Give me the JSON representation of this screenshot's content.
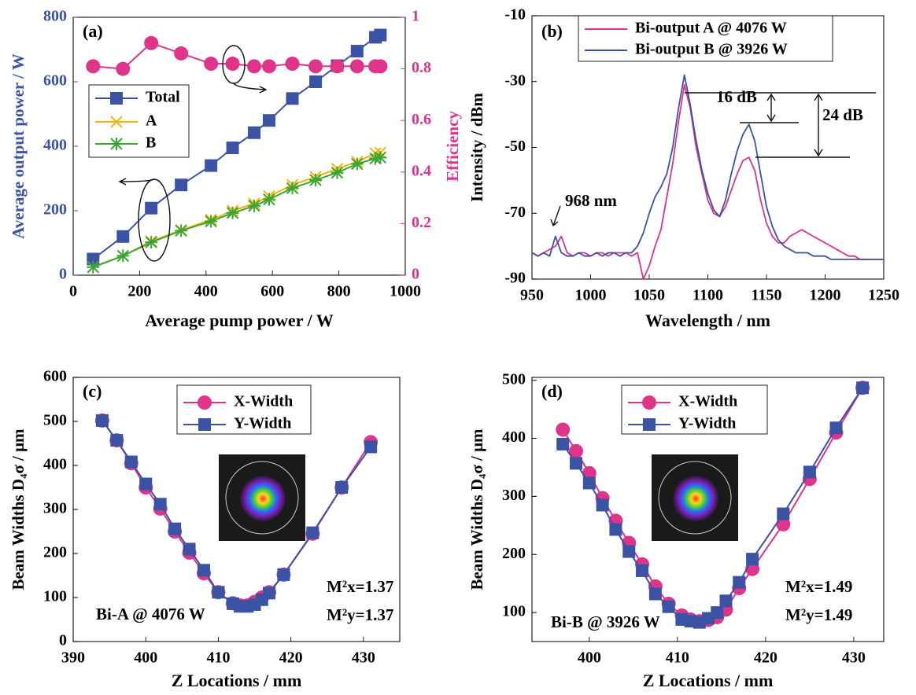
{
  "chart_data": [
    {
      "type": "line",
      "panel_label": "(a)",
      "xlabel": "Average pump power / W",
      "ylabel": "Average output power / W",
      "y2label": "Efficiency",
      "xlim": [
        0,
        1000
      ],
      "xticks": [
        0,
        200,
        400,
        600,
        800,
        1000
      ],
      "ylim": [
        0,
        800
      ],
      "yticks": [
        0,
        200,
        400,
        600,
        800
      ],
      "y2lim": [
        0,
        1
      ],
      "y2ticks": [
        0,
        0.2,
        0.4,
        0.6,
        0.8,
        1
      ],
      "legend": "center left",
      "x": [
        60,
        150,
        235,
        325,
        415,
        480,
        545,
        590,
        660,
        730,
        795,
        855,
        910,
        925
      ],
      "series": [
        {
          "name": "Total",
          "color": "#3a53a4",
          "marker": "square",
          "values": [
            50,
            120,
            208,
            280,
            340,
            395,
            442,
            480,
            548,
            600,
            650,
            695,
            738,
            745
          ]
        },
        {
          "name": "A",
          "color": "#f2b705",
          "marker": "x",
          "values": [
            25,
            60,
            105,
            140,
            172,
            200,
            222,
            245,
            280,
            305,
            330,
            352,
            378,
            380
          ]
        },
        {
          "name": "B",
          "color": "#3aa635",
          "marker": "asterisk",
          "values": [
            25,
            60,
            102,
            138,
            167,
            193,
            215,
            235,
            270,
            295,
            318,
            345,
            362,
            365
          ]
        },
        {
          "name": null,
          "color": "#e0338a",
          "marker": "circle",
          "axis": "y2",
          "values": [
            0.81,
            0.8,
            0.9,
            0.86,
            0.82,
            0.82,
            0.81,
            0.81,
            0.82,
            0.81,
            0.81,
            0.81,
            0.81,
            0.81
          ]
        }
      ],
      "annotations": []
    },
    {
      "type": "line",
      "panel_label": "(b)",
      "xlabel": "Wavelength / nm",
      "ylabel": "Intensity / dBm",
      "xlim": [
        950,
        1250
      ],
      "xticks": [
        950,
        1000,
        1050,
        1100,
        1150,
        1200,
        1250
      ],
      "ylim": [
        -90,
        -10
      ],
      "yticks": [
        -90,
        -70,
        -50,
        -30,
        -10
      ],
      "legend": "upper center",
      "x": [
        950,
        955,
        960,
        965,
        970,
        975,
        980,
        985,
        990,
        995,
        1000,
        1005,
        1010,
        1015,
        1020,
        1025,
        1030,
        1035,
        1040,
        1045,
        1050,
        1055,
        1060,
        1065,
        1070,
        1075,
        1080,
        1085,
        1090,
        1095,
        1100,
        1105,
        1110,
        1115,
        1120,
        1125,
        1130,
        1135,
        1140,
        1145,
        1150,
        1155,
        1160,
        1165,
        1170,
        1175,
        1180,
        1185,
        1190,
        1195,
        1200,
        1205,
        1210,
        1215,
        1220,
        1225,
        1230,
        1235,
        1240,
        1245,
        1250
      ],
      "series": [
        {
          "name": "Bi-output A @ 4076 W",
          "color": "#e0338a",
          "values": [
            -82,
            -83,
            -82,
            -81,
            -80,
            -77,
            -82,
            -83,
            -82,
            -82,
            -83,
            -82,
            -82,
            -83,
            -82,
            -82,
            -82,
            -83,
            -82,
            -90,
            -86,
            -80,
            -75,
            -65,
            -55,
            -42,
            -31,
            -38,
            -50,
            -58,
            -66,
            -70,
            -71,
            -68,
            -63,
            -58,
            -54,
            -53,
            -57,
            -66,
            -73,
            -77,
            -79,
            -79,
            -77,
            -76,
            -75,
            -76,
            -77,
            -78,
            -79,
            -80,
            -81,
            -82,
            -83,
            -83,
            -84,
            -84,
            -84,
            -84,
            -84
          ]
        },
        {
          "name": "Bi-output B @ 3926 W",
          "color": "#3a53a4",
          "values": [
            -82,
            -83,
            -82,
            -83,
            -77,
            -82,
            -83,
            -83,
            -82,
            -83,
            -83,
            -82,
            -83,
            -82,
            -82,
            -83,
            -82,
            -82,
            -80,
            -76,
            -70,
            -65,
            -62,
            -58,
            -50,
            -38,
            -28,
            -37,
            -48,
            -57,
            -64,
            -69,
            -71,
            -66,
            -58,
            -51,
            -46,
            -43,
            -48,
            -58,
            -68,
            -74,
            -78,
            -80,
            -81,
            -82,
            -82,
            -82,
            -83,
            -83,
            -83,
            -84,
            -84,
            -84,
            -84,
            -84,
            -84,
            -84,
            -84,
            -84,
            -84
          ]
        }
      ],
      "annotations": [
        "968 nm",
        "16 dB",
        "24 dB"
      ]
    },
    {
      "type": "line",
      "panel_label": "(c)",
      "xlabel": "Z Locations / mm",
      "ylabel": "Beam Widths D₄σ / μm",
      "xlim": [
        390,
        435
      ],
      "xticks": [
        390,
        400,
        410,
        420,
        430
      ],
      "ylim": [
        0,
        600
      ],
      "yticks": [
        0,
        100,
        200,
        300,
        400,
        500,
        600
      ],
      "legend": "upper center",
      "x": [
        394,
        396,
        398,
        400,
        402,
        404,
        406,
        408,
        410,
        412,
        413,
        414,
        415,
        416,
        417,
        419,
        423,
        427,
        431
      ],
      "series": [
        {
          "name": "X-Width",
          "color": "#e0338a",
          "marker": "circle",
          "values": [
            502,
            457,
            405,
            350,
            302,
            250,
            202,
            155,
            112,
            87,
            82,
            82,
            90,
            100,
            112,
            152,
            245,
            350,
            453
          ]
        },
        {
          "name": "Y-Width",
          "color": "#3a53a4",
          "marker": "square",
          "values": [
            502,
            457,
            408,
            358,
            312,
            256,
            210,
            162,
            112,
            86,
            80,
            80,
            84,
            95,
            110,
            152,
            247,
            350,
            442
          ]
        }
      ],
      "annotations": [
        "Bi-A @ 4076 W",
        "M²x=1.37",
        "M²y=1.37"
      ]
    },
    {
      "type": "line",
      "panel_label": "(d)",
      "xlabel": "Z Locations / mm",
      "ylabel": "Beam Widths D₄σ / μm",
      "xlim": [
        393.5,
        433.4
      ],
      "xticks": [
        400,
        410,
        420,
        430
      ],
      "ylim": [
        50,
        505
      ],
      "yticks": [
        100,
        200,
        300,
        400,
        500
      ],
      "legend": "upper center",
      "x": [
        397,
        398.5,
        400,
        401.5,
        403,
        404.5,
        406,
        407.5,
        409,
        410.5,
        411.5,
        412.5,
        413.5,
        414.5,
        415.5,
        417,
        418.5,
        422,
        425,
        428,
        431
      ],
      "series": [
        {
          "name": "X-Width",
          "color": "#e0338a",
          "marker": "circle",
          "values": [
            415,
            378,
            340,
            297,
            258,
            220,
            183,
            145,
            115,
            95,
            88,
            85,
            87,
            92,
            105,
            142,
            175,
            252,
            330,
            410,
            487
          ]
        },
        {
          "name": "Y-Width",
          "color": "#3a53a4",
          "marker": "square",
          "values": [
            390,
            357,
            323,
            285,
            243,
            205,
            172,
            132,
            110,
            88,
            85,
            83,
            90,
            100,
            120,
            152,
            192,
            270,
            342,
            418,
            487
          ]
        }
      ],
      "annotations": [
        "Bi-B @ 3926 W",
        "M²x=1.49",
        "M²y=1.49"
      ]
    }
  ]
}
